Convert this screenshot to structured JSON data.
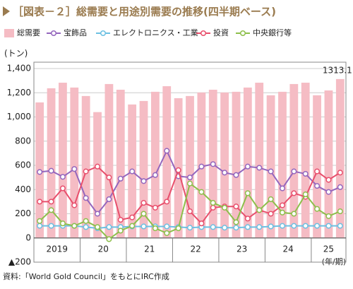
{
  "chart_data": {
    "type": "bar",
    "title": "［図表－２］総需要と用途別需要の推移(四半期ベース)",
    "y_label": "(トン)",
    "x_label": "(年/期)",
    "source": "資料:「World Gold Council」をもとにIRC作成",
    "annotation": "1313.1",
    "categories": [
      "2019",
      null,
      null,
      null,
      "20",
      null,
      null,
      null,
      "21",
      null,
      null,
      null,
      "22",
      null,
      null,
      null,
      "23",
      null,
      null,
      null,
      "24",
      null,
      null,
      null,
      "25",
      null,
      null
    ],
    "series": [
      {
        "name": "総需要",
        "type": "bar",
        "color": "#f5bcc4",
        "values": [
          1120,
          1237,
          1283,
          1243,
          1173,
          1040,
          1272,
          1225,
          1103,
          1132,
          1208,
          1254,
          1155,
          1173,
          1202,
          1225,
          1202,
          1208,
          1243,
          1283,
          1179,
          1208,
          1272,
          1283,
          1179,
          1219,
          1313.1
        ]
      },
      {
        "name": "宝飾品",
        "type": "line",
        "color": "#9466bd",
        "values": [
          545,
          555,
          505,
          570,
          330,
          200,
          320,
          490,
          550,
          470,
          520,
          720,
          510,
          500,
          590,
          610,
          540,
          520,
          590,
          580,
          550,
          410,
          550,
          530,
          430,
          380,
          420
        ]
      },
      {
        "name": "エレクトロニクス・工業",
        "type": "line",
        "color": "#6cc0e2",
        "values": [
          100,
          100,
          100,
          100,
          90,
          80,
          90,
          90,
          95,
          95,
          95,
          95,
          90,
          85,
          90,
          90,
          85,
          85,
          90,
          90,
          95,
          100,
          100,
          100,
          100,
          100,
          100
        ]
      },
      {
        "name": "投資",
        "type": "line",
        "color": "#e84f6c",
        "values": [
          300,
          300,
          410,
          270,
          550,
          590,
          500,
          150,
          170,
          290,
          250,
          300,
          560,
          220,
          120,
          250,
          260,
          260,
          160,
          230,
          200,
          270,
          370,
          340,
          550,
          480,
          540
        ]
      },
      {
        "name": "中央銀行等",
        "type": "line",
        "color": "#8dbf4b",
        "values": [
          140,
          230,
          120,
          100,
          140,
          90,
          -10,
          60,
          100,
          200,
          80,
          40,
          80,
          450,
          380,
          290,
          250,
          130,
          370,
          230,
          320,
          210,
          200,
          360,
          240,
          180,
          220
        ]
      }
    ],
    "ylim": [
      -200,
      1400
    ],
    "yticks": [
      {
        "value": -200,
        "label": "▲200"
      },
      0,
      200,
      400,
      600,
      800,
      {
        "value": 1000,
        "label": "1,000"
      },
      {
        "value": 1200,
        "label": "1,200"
      },
      {
        "value": 1400,
        "label": "1,400"
      }
    ],
    "grid": true
  }
}
